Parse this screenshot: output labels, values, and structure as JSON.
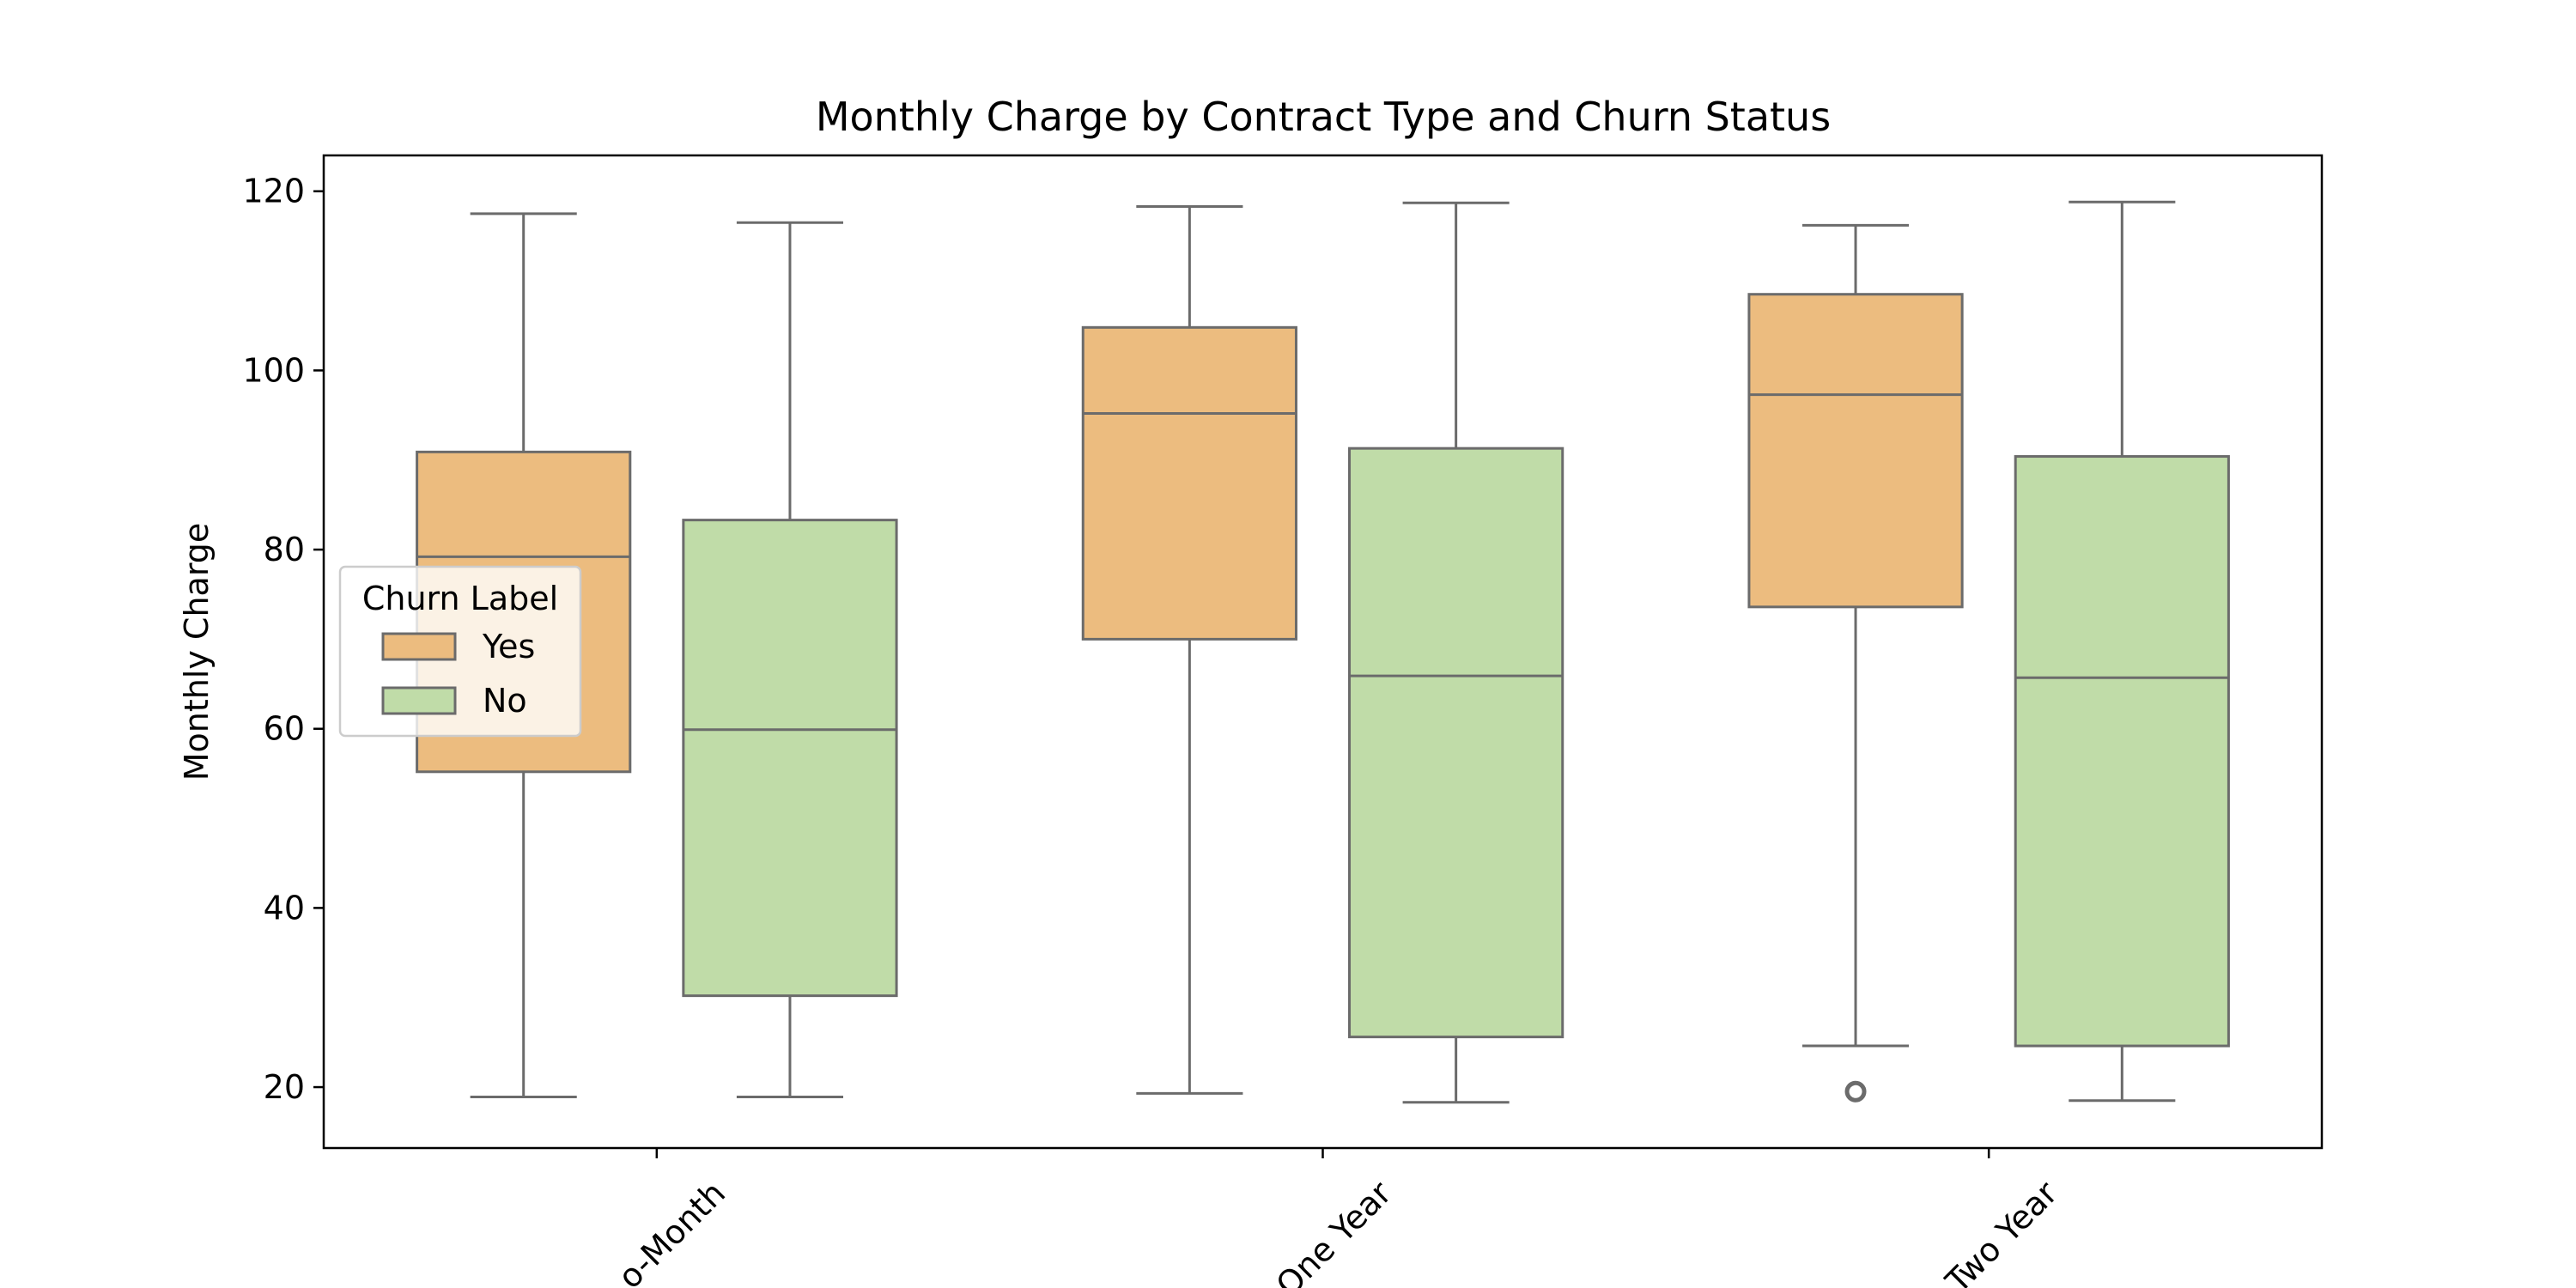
{
  "chart_data": {
    "type": "box",
    "title": "Monthly Charge by Contract Type and Churn Status",
    "xlabel": "",
    "ylabel": "Monthly Charge",
    "categories": [
      "Month-to-Month",
      "One Year",
      "Two Year"
    ],
    "category_tick_labels_visible": [
      "o-Month",
      "One Year",
      "Two Year"
    ],
    "ylim": [
      13.2,
      124.0
    ],
    "yticks": [
      20,
      40,
      60,
      80,
      100,
      120
    ],
    "grid": false,
    "legend": {
      "title": "Churn Label",
      "placement": "center-left",
      "entries": [
        "Yes",
        "No"
      ]
    },
    "series": [
      {
        "name": "Yes",
        "color": "#ecbc7f",
        "boxes": [
          {
            "min": 18.9,
            "q1": 55.2,
            "median": 79.2,
            "q3": 90.9,
            "max": 117.5,
            "outliers": []
          },
          {
            "min": 19.3,
            "q1": 70.0,
            "median": 95.2,
            "q3": 104.8,
            "max": 118.3,
            "outliers": []
          },
          {
            "min": 24.6,
            "q1": 73.6,
            "median": 97.3,
            "q3": 108.5,
            "max": 116.2,
            "outliers": [
              19.5
            ]
          }
        ]
      },
      {
        "name": "No",
        "color": "#c0dca8",
        "boxes": [
          {
            "min": 18.9,
            "q1": 30.2,
            "median": 59.9,
            "q3": 83.3,
            "max": 116.5,
            "outliers": []
          },
          {
            "min": 18.3,
            "q1": 25.6,
            "median": 65.9,
            "q3": 91.3,
            "max": 118.7,
            "outliers": []
          },
          {
            "min": 18.5,
            "q1": 24.6,
            "median": 65.7,
            "q3": 90.4,
            "max": 118.8,
            "outliers": []
          }
        ]
      }
    ],
    "colors": {
      "line": "#6b6b6b",
      "frame": "#000000"
    }
  }
}
